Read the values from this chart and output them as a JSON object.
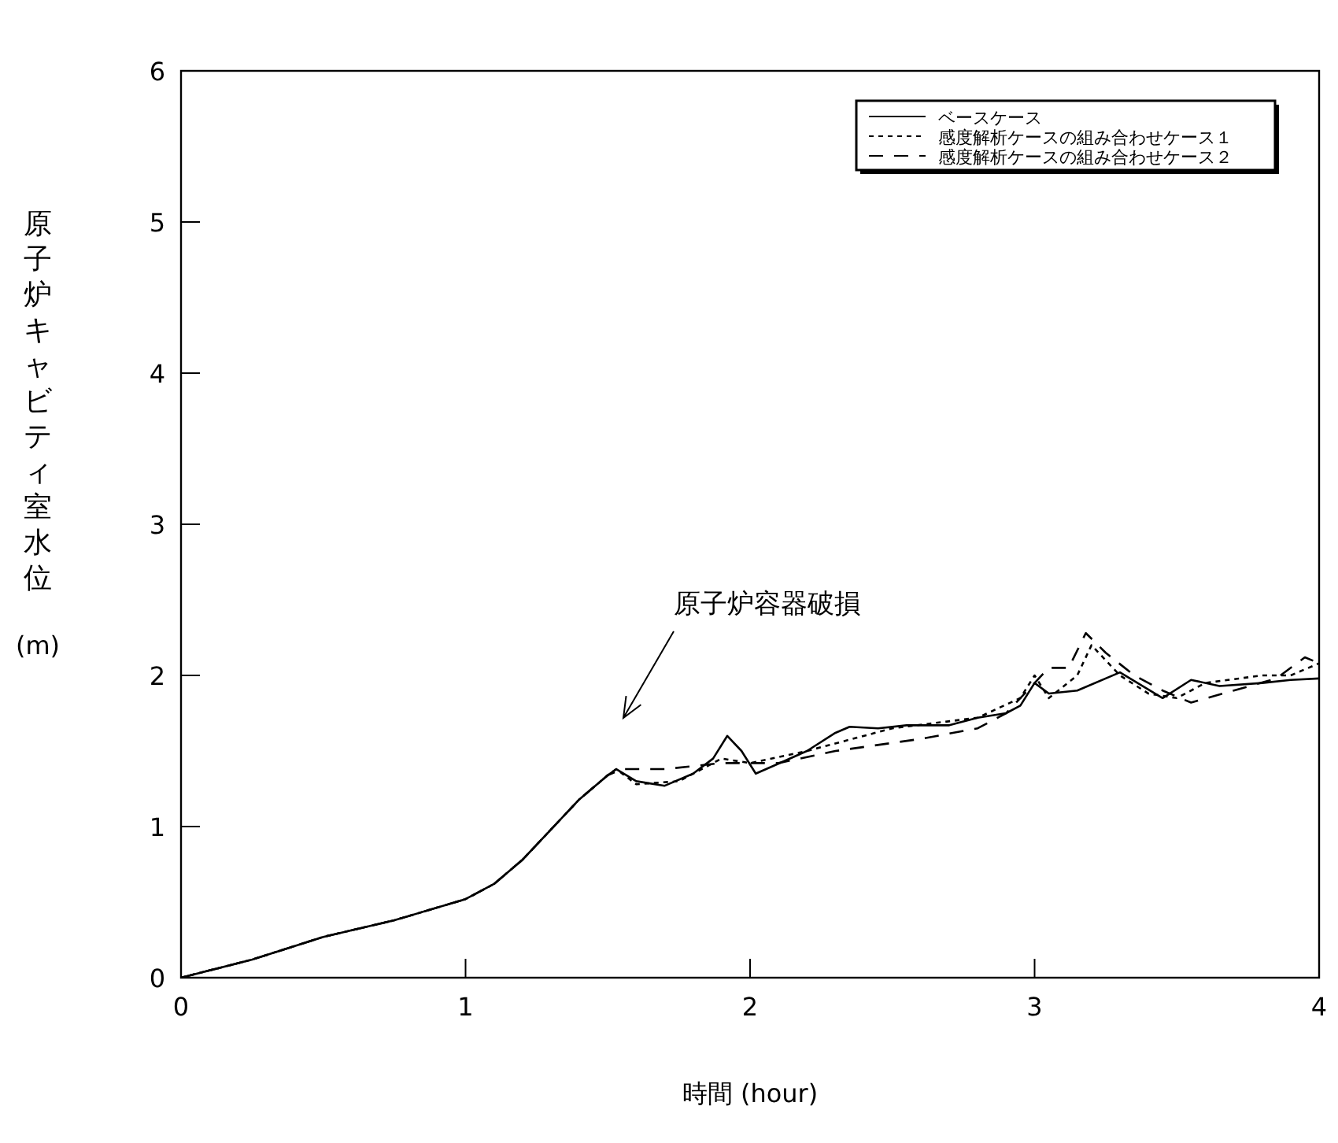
{
  "chart_data": {
    "type": "line",
    "xlabel": "時間 (hour)",
    "ylabel": "原子炉キャビティ室水位 (m)",
    "xlim": [
      0,
      4
    ],
    "xticks": [
      0,
      1,
      2,
      3,
      4
    ],
    "ylim": [
      0,
      6
    ],
    "yticks": [
      0,
      1,
      2,
      3,
      4,
      5,
      6
    ],
    "grid": false,
    "legend": "top right",
    "annotations": [
      "原子炉容器破損"
    ],
    "series": [
      {
        "name": "ベースケース",
        "color": "#000000",
        "line_style": "solid",
        "x": [
          0,
          0.25,
          0.5,
          0.75,
          1.0,
          1.1,
          1.2,
          1.3,
          1.4,
          1.5,
          1.53,
          1.6,
          1.7,
          1.8,
          1.87,
          1.92,
          1.97,
          2.02,
          2.08,
          2.2,
          2.3,
          2.35,
          2.45,
          2.55,
          2.7,
          2.8,
          2.9,
          2.95,
          3.0,
          3.05,
          3.15,
          3.3,
          3.45,
          3.55,
          3.65,
          3.8,
          3.9,
          4.0
        ],
        "values": [
          0,
          0.12,
          0.27,
          0.38,
          0.52,
          0.62,
          0.78,
          0.98,
          1.18,
          1.34,
          1.38,
          1.3,
          1.27,
          1.35,
          1.45,
          1.6,
          1.5,
          1.35,
          1.4,
          1.5,
          1.62,
          1.66,
          1.65,
          1.67,
          1.67,
          1.72,
          1.75,
          1.8,
          1.95,
          1.88,
          1.9,
          2.02,
          1.85,
          1.97,
          1.93,
          1.95,
          1.97,
          1.98
        ]
      },
      {
        "name": "感度解析ケースの組み合わせケース１",
        "color": "#000000",
        "line_style": "dotted",
        "x": [
          0,
          0.25,
          0.5,
          0.75,
          1.0,
          1.1,
          1.2,
          1.3,
          1.4,
          1.5,
          1.53,
          1.6,
          1.75,
          1.9,
          2.0,
          2.2,
          2.5,
          2.8,
          2.95,
          3.0,
          3.05,
          3.15,
          3.2,
          3.3,
          3.4,
          3.5,
          3.6,
          3.8,
          3.9,
          4.0
        ],
        "values": [
          0,
          0.12,
          0.27,
          0.38,
          0.52,
          0.62,
          0.78,
          0.98,
          1.18,
          1.34,
          1.38,
          1.28,
          1.3,
          1.45,
          1.42,
          1.5,
          1.65,
          1.72,
          1.85,
          2.0,
          1.85,
          2.0,
          2.2,
          2.0,
          1.88,
          1.85,
          1.95,
          2.0,
          2.0,
          2.08
        ]
      },
      {
        "name": "感度解析ケースの組み合わせケース２",
        "color": "#000000",
        "line_style": "dashed",
        "x": [
          0,
          0.25,
          0.5,
          0.75,
          1.0,
          1.1,
          1.2,
          1.3,
          1.4,
          1.5,
          1.55,
          1.7,
          1.9,
          2.1,
          2.3,
          2.6,
          2.8,
          2.9,
          3.0,
          3.05,
          3.12,
          3.18,
          3.25,
          3.35,
          3.45,
          3.55,
          3.7,
          3.85,
          3.95,
          4.0
        ],
        "values": [
          0,
          0.12,
          0.27,
          0.38,
          0.52,
          0.62,
          0.78,
          0.98,
          1.18,
          1.34,
          1.38,
          1.38,
          1.42,
          1.42,
          1.5,
          1.58,
          1.65,
          1.75,
          1.95,
          2.05,
          2.05,
          2.28,
          2.15,
          2.0,
          1.9,
          1.82,
          1.9,
          1.98,
          2.12,
          2.08
        ]
      }
    ]
  }
}
